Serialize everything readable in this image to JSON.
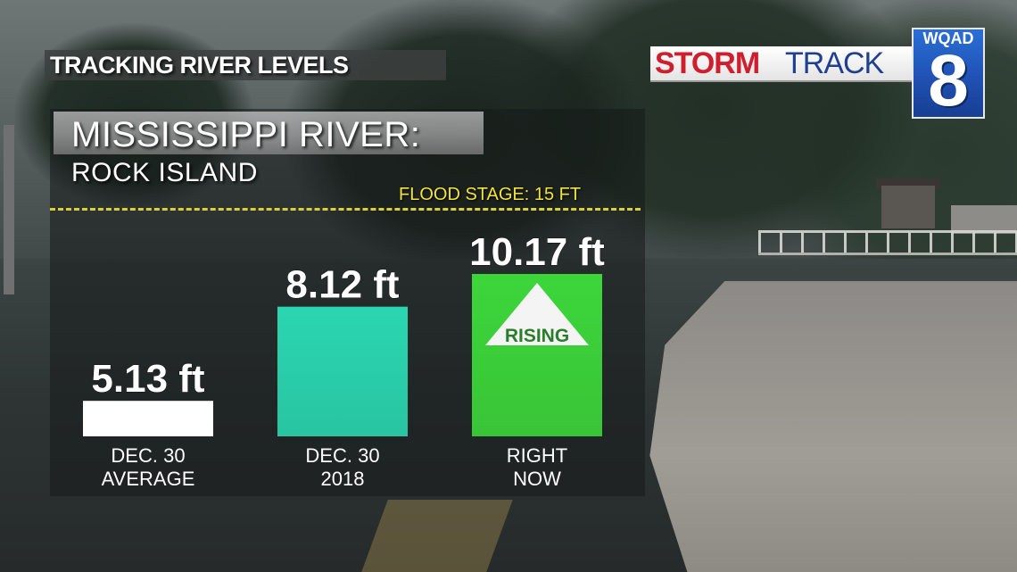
{
  "header": {
    "title": "TRACKING RIVER LEVELS"
  },
  "location": {
    "line1": "MISSISSIPPI RIVER:",
    "line2": "ROCK ISLAND"
  },
  "flood_stage": {
    "label": "FLOOD STAGE: 15 FT",
    "color": "#d9cf38"
  },
  "logo": {
    "part1": "STORM",
    "part2": "TRACK",
    "station": "WQAD",
    "channel": "8"
  },
  "chart_data": {
    "type": "bar",
    "categories": [
      [
        "DEC. 30",
        "AVERAGE"
      ],
      [
        "DEC. 30",
        "2018"
      ],
      [
        "RIGHT",
        "NOW"
      ]
    ],
    "values": [
      5.13,
      8.12,
      10.17
    ],
    "value_labels": [
      "5.13 ft",
      "8.12 ft",
      "10.17 ft"
    ],
    "colors": [
      "#ffffff",
      "#2ad6b0",
      "#3cd63a"
    ],
    "annotation": {
      "bar_index": 2,
      "text": "RISING",
      "icon": "up-triangle-icon"
    },
    "ylim": [
      0,
      15
    ],
    "grid": false,
    "reference_line": {
      "value": 15,
      "style": "dashed",
      "color": "#d9cf38"
    }
  }
}
